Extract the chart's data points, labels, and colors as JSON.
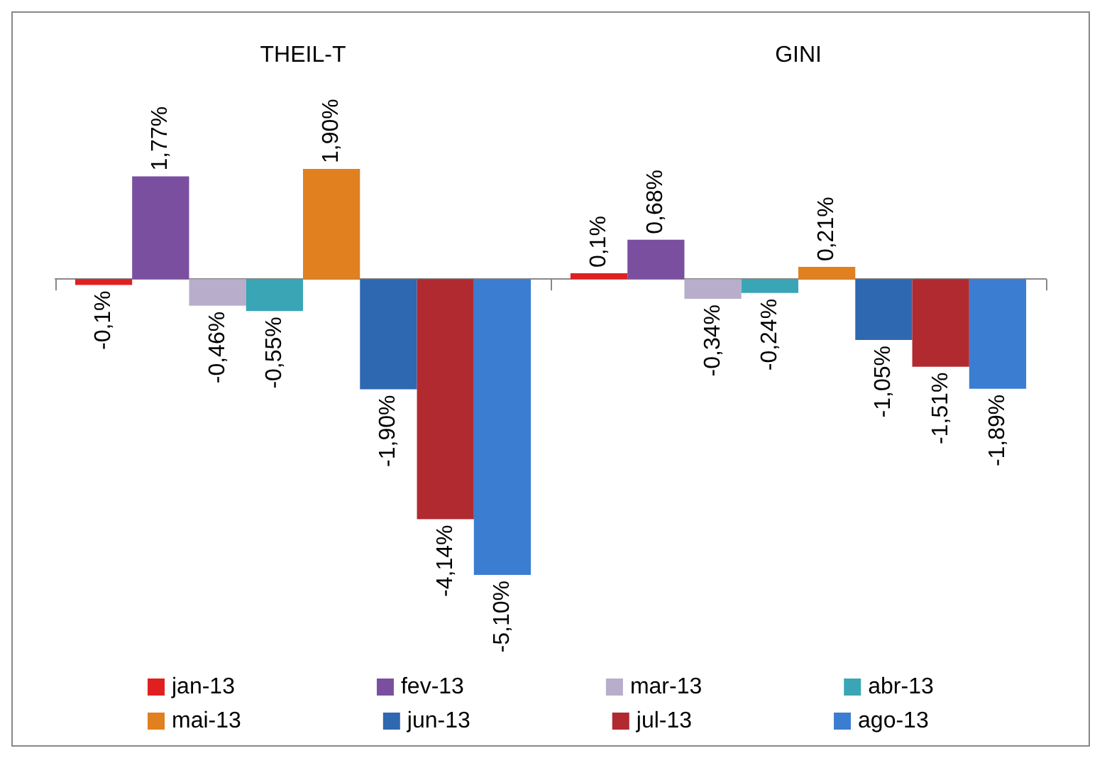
{
  "chart_data": {
    "type": "bar",
    "categories": [
      "THEIL-T",
      "GINI"
    ],
    "legend": "bottom",
    "series": [
      {
        "name": "jan-13",
        "color": "#e02020",
        "values": [
          -0.1,
          0.1
        ],
        "value_labels": [
          "-0,1%",
          "0,1%"
        ]
      },
      {
        "name": "fev-13",
        "color": "#7a4fa0",
        "values": [
          1.77,
          0.68
        ],
        "value_labels": [
          "1,77%",
          "0,68%"
        ]
      },
      {
        "name": "mar-13",
        "color": "#b8aecb",
        "values": [
          -0.46,
          -0.34
        ],
        "value_labels": [
          "-0,46%",
          "-0,34%"
        ]
      },
      {
        "name": "abr-13",
        "color": "#3aa5b5",
        "values": [
          -0.55,
          -0.24
        ],
        "value_labels": [
          "-0,55%",
          "-0,24%"
        ]
      },
      {
        "name": "mai-13",
        "color": "#e0801e",
        "values": [
          1.9,
          0.21
        ],
        "value_labels": [
          "1,90%",
          "0,21%"
        ]
      },
      {
        "name": "jun-13",
        "color": "#2e68b0",
        "values": [
          -1.9,
          -1.05
        ],
        "value_labels": [
          "-1,90%",
          "-1,05%"
        ]
      },
      {
        "name": "jul-13",
        "color": "#b02a30",
        "values": [
          -4.14,
          -1.51
        ],
        "value_labels": [
          "-4,14%",
          "-1,51%"
        ]
      },
      {
        "name": "ago-13",
        "color": "#3b7dd0",
        "values": [
          -5.1,
          -1.89
        ],
        "value_labels": [
          "-5,10%",
          "-1,89%"
        ]
      }
    ]
  }
}
